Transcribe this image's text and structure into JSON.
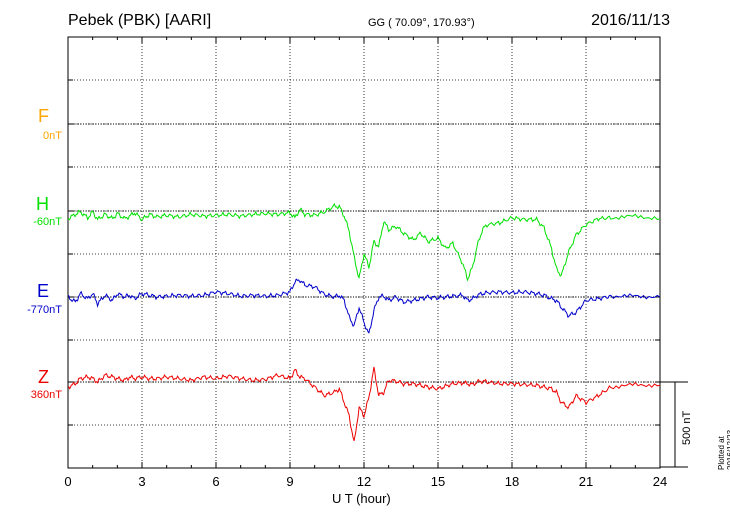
{
  "header": {
    "title": "Pebek (PBK)  [AARI]",
    "coords": "GG ( 70.09°, 170.93°)",
    "date": "2016/11/13"
  },
  "footer": {
    "plotted": "Plotted at 2016/12/23 15:47 UT"
  },
  "chart_data": {
    "type": "line",
    "title": "Pebek (PBK)  [AARI]",
    "xlabel": "U T (hour)",
    "ylabel": "",
    "xlim": [
      0,
      24
    ],
    "xticks": [
      0,
      3,
      6,
      9,
      12,
      15,
      18,
      21,
      24
    ],
    "x_tick_labels": [
      "0",
      "3",
      "6",
      "9",
      "12",
      "15",
      "18",
      "21",
      "24"
    ],
    "grid": true,
    "scale_bar": {
      "label": "500 nT",
      "value_nT": 500
    },
    "series": [
      {
        "name": "F",
        "baseline": "0nT",
        "color": "#FFA500",
        "x": [],
        "y": []
      },
      {
        "name": "H",
        "baseline": "-60nT",
        "color": "#00E000",
        "x": [
          0,
          0.3,
          0.5,
          0.8,
          1,
          1.2,
          1.5,
          1.8,
          2,
          2.3,
          2.5,
          2.7,
          3,
          3.3,
          3.6,
          4,
          4.5,
          5,
          5.5,
          6,
          6.5,
          7,
          7.5,
          8,
          8.5,
          9,
          9.2,
          9.4,
          9.6,
          10,
          10.4,
          10.8,
          11,
          11.2,
          11.4,
          11.6,
          11.8,
          12,
          12.2,
          12.4,
          12.6,
          12.8,
          13,
          13.3,
          13.6,
          14,
          14.3,
          14.6,
          15,
          15.3,
          15.6,
          16,
          16.2,
          16.4,
          16.6,
          16.8,
          17,
          17.5,
          18,
          18.5,
          19,
          19.3,
          19.6,
          19.8,
          20,
          20.3,
          20.6,
          21,
          21.5,
          22,
          23,
          24
        ],
        "y": [
          -45,
          -20,
          -5,
          -40,
          -5,
          -50,
          -20,
          -45,
          -15,
          -45,
          -30,
          -10,
          -50,
          -20,
          -35,
          -25,
          -35,
          -20,
          -30,
          -25,
          -20,
          -30,
          -20,
          -15,
          -20,
          -10,
          -40,
          10,
          -20,
          -25,
          -5,
          30,
          25,
          -30,
          -120,
          -270,
          -400,
          -250,
          -330,
          -180,
          -210,
          -60,
          -110,
          -90,
          -130,
          -170,
          -130,
          -180,
          -160,
          -220,
          -190,
          -310,
          -400,
          -330,
          -200,
          -110,
          -80,
          -70,
          -40,
          -50,
          -50,
          -100,
          -220,
          -340,
          -380,
          -240,
          -140,
          -80,
          -45,
          -40,
          -30,
          -45
        ]
      },
      {
        "name": "E",
        "baseline": "-770nT",
        "color": "#0000CC",
        "x": [
          0,
          0.3,
          0.5,
          0.8,
          1,
          1.2,
          1.5,
          1.8,
          2,
          2.3,
          2.5,
          2.7,
          3,
          3.3,
          3.6,
          4,
          4.5,
          5,
          5.5,
          6,
          6.5,
          7,
          7.5,
          8,
          8.5,
          9,
          9.2,
          9.4,
          9.6,
          10,
          10.4,
          10.8,
          11,
          11.2,
          11.4,
          11.6,
          11.8,
          12,
          12.2,
          12.4,
          12.6,
          12.8,
          13,
          13.3,
          13.6,
          14,
          14.3,
          14.6,
          15,
          15.3,
          15.6,
          16,
          16.2,
          16.4,
          16.6,
          16.8,
          17,
          17.5,
          18,
          18.5,
          19,
          19.3,
          19.6,
          19.8,
          20,
          20.3,
          20.6,
          21,
          21.5,
          22,
          23,
          24
        ],
        "y": [
          0,
          -30,
          20,
          -10,
          20,
          -40,
          10,
          -20,
          20,
          0,
          10,
          -10,
          20,
          10,
          0,
          5,
          10,
          5,
          10,
          30,
          20,
          5,
          10,
          5,
          10,
          30,
          90,
          100,
          70,
          60,
          15,
          0,
          10,
          -20,
          -120,
          -170,
          -60,
          -150,
          -220,
          -80,
          0,
          5,
          -20,
          0,
          -30,
          -20,
          -10,
          0,
          -5,
          0,
          5,
          10,
          -20,
          -10,
          10,
          20,
          25,
          30,
          25,
          30,
          20,
          10,
          -10,
          -20,
          -60,
          -110,
          -90,
          -20,
          -10,
          5,
          5,
          0
        ]
      },
      {
        "name": "Z",
        "baseline": "360nT",
        "color": "#EE0000",
        "x": [
          0,
          0.3,
          0.5,
          0.8,
          1,
          1.2,
          1.5,
          1.8,
          2,
          2.3,
          2.5,
          2.7,
          3,
          3.3,
          3.6,
          4,
          4.5,
          5,
          5.5,
          6,
          6.5,
          7,
          7.5,
          8,
          8.5,
          9,
          9.2,
          9.4,
          9.6,
          10,
          10.4,
          10.8,
          11,
          11.2,
          11.4,
          11.6,
          11.8,
          12,
          12.2,
          12.4,
          12.6,
          12.8,
          13,
          13.3,
          13.6,
          14,
          14.3,
          14.6,
          15,
          15.3,
          15.6,
          16,
          16.2,
          16.4,
          16.6,
          16.8,
          17,
          17.5,
          18,
          18.5,
          19,
          19.3,
          19.6,
          19.8,
          20,
          20.3,
          20.6,
          21,
          21.5,
          22,
          23,
          24
        ],
        "y": [
          -30,
          -10,
          20,
          30,
          20,
          0,
          40,
          30,
          20,
          10,
          30,
          20,
          30,
          20,
          20,
          30,
          20,
          10,
          30,
          20,
          35,
          20,
          10,
          15,
          40,
          20,
          70,
          30,
          20,
          -30,
          -80,
          -60,
          -40,
          -120,
          -200,
          -360,
          -150,
          -200,
          -90,
          80,
          -80,
          -60,
          10,
          5,
          -10,
          -10,
          -20,
          -30,
          -40,
          -25,
          -10,
          -5,
          -10,
          -15,
          0,
          5,
          0,
          -10,
          -10,
          -15,
          -20,
          -30,
          -40,
          -60,
          -120,
          -150,
          -80,
          -120,
          -80,
          -30,
          -15,
          -20
        ]
      }
    ]
  }
}
